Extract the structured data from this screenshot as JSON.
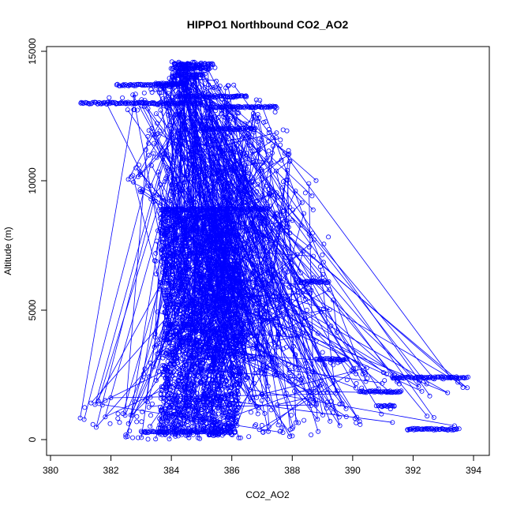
{
  "chart_data": {
    "type": "scatter",
    "title": "HIPPO1 Northbound CO2_AO2",
    "xlabel": "CO2_AO2",
    "ylabel": "Altitude (m)",
    "xlim": [
      380,
      394
    ],
    "ylim": [
      0,
      15000
    ],
    "x_ticks": [
      380,
      382,
      384,
      386,
      388,
      390,
      392,
      394
    ],
    "y_ticks": [
      0,
      5000,
      10000,
      15000
    ],
    "x_tick_labels": [
      "380",
      "382",
      "384",
      "386",
      "388",
      "390",
      "392",
      "394"
    ],
    "y_tick_labels": [
      "0",
      "5000",
      "10000",
      "15000"
    ],
    "grid": false,
    "legend": "none",
    "series_color": "#0000ff",
    "marker": "open-circle-with-lines",
    "profile": [
      {
        "alt": 0,
        "xmin": 382.8,
        "xmax": 386.5
      },
      {
        "alt": 500,
        "xmin": 381.0,
        "xmax": 393.5
      },
      {
        "alt": 1000,
        "xmin": 380.5,
        "xmax": 392.5
      },
      {
        "alt": 1500,
        "xmin": 381.5,
        "xmax": 392.0
      },
      {
        "alt": 2000,
        "xmin": 382.5,
        "xmax": 394.0
      },
      {
        "alt": 2500,
        "xmin": 383.0,
        "xmax": 393.5
      },
      {
        "alt": 3000,
        "xmin": 383.2,
        "xmax": 390.0
      },
      {
        "alt": 4000,
        "xmin": 383.4,
        "xmax": 389.8
      },
      {
        "alt": 5000,
        "xmin": 383.5,
        "xmax": 389.5
      },
      {
        "alt": 6000,
        "xmin": 383.6,
        "xmax": 389.3
      },
      {
        "alt": 7000,
        "xmin": 383.3,
        "xmax": 389.0
      },
      {
        "alt": 8000,
        "xmin": 383.4,
        "xmax": 389.5
      },
      {
        "alt": 8500,
        "xmin": 383.8,
        "xmax": 388.5
      },
      {
        "alt": 9000,
        "xmin": 383.5,
        "xmax": 388.8
      },
      {
        "alt": 10000,
        "xmin": 382.5,
        "xmax": 388.8
      },
      {
        "alt": 11000,
        "xmin": 383.0,
        "xmax": 388.3
      },
      {
        "alt": 12000,
        "xmin": 383.2,
        "xmax": 388.0
      },
      {
        "alt": 12500,
        "xmin": 383.8,
        "xmax": 387.5
      },
      {
        "alt": 13000,
        "xmin": 381.0,
        "xmax": 387.5
      },
      {
        "alt": 13500,
        "xmin": 383.0,
        "xmax": 386.5
      },
      {
        "alt": 14000,
        "xmin": 384.0,
        "xmax": 385.5
      },
      {
        "alt": 14500,
        "xmin": 384.0,
        "xmax": 385.5
      }
    ],
    "level_runs": [
      {
        "alt": 14500,
        "xmin": 384.1,
        "xmax": 385.4
      },
      {
        "alt": 14350,
        "xmin": 384.0,
        "xmax": 385.3
      },
      {
        "alt": 14100,
        "xmin": 384.3,
        "xmax": 385.1
      },
      {
        "alt": 13700,
        "xmin": 382.2,
        "xmax": 384.5
      },
      {
        "alt": 13750,
        "xmin": 383.5,
        "xmax": 384.5
      },
      {
        "alt": 13250,
        "xmin": 384.2,
        "xmax": 386.5
      },
      {
        "alt": 13000,
        "xmin": 381.0,
        "xmax": 385.0
      },
      {
        "alt": 12850,
        "xmin": 385.2,
        "xmax": 387.5
      },
      {
        "alt": 12000,
        "xmin": 385.0,
        "xmax": 386.8
      },
      {
        "alt": 8900,
        "xmin": 383.8,
        "xmax": 387.2
      },
      {
        "alt": 6100,
        "xmin": 388.2,
        "xmax": 389.2
      },
      {
        "alt": 3100,
        "xmin": 388.8,
        "xmax": 389.8
      },
      {
        "alt": 2400,
        "xmin": 391.3,
        "xmax": 393.8
      },
      {
        "alt": 1850,
        "xmin": 390.2,
        "xmax": 391.6
      },
      {
        "alt": 1300,
        "xmin": 390.8,
        "xmax": 391.4
      },
      {
        "alt": 400,
        "xmin": 391.8,
        "xmax": 393.5
      },
      {
        "alt": 300,
        "xmin": 383.0,
        "xmax": 386.0
      }
    ],
    "density_core": [
      {
        "alt": 1000,
        "xmin": 383.6,
        "xmax": 386.2
      },
      {
        "alt": 5000,
        "xmin": 383.8,
        "xmax": 386.5
      },
      {
        "alt": 8500,
        "xmin": 383.6,
        "xmax": 386.0
      }
    ]
  }
}
